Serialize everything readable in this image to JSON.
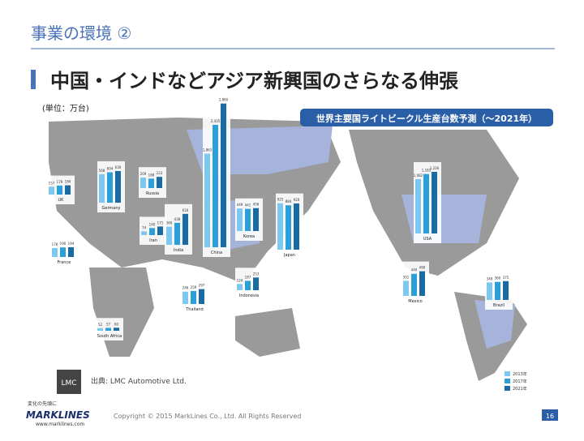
{
  "header": {
    "title": "事業の環境 ②",
    "headline": "中国・インドなどアジア新興国のさらなる伸張"
  },
  "unit": "(単位：万台)",
  "source": "出典: LMC Automotive Ltd.",
  "logo": "LMC",
  "footer": {
    "tagline": "変化の先頭に",
    "brand": "MARKLINES",
    "url": "www.marklines.com",
    "copyright": "Copyright © 2015 MarkLines Co., Ltd. All Rights Reserved",
    "page": "16"
  },
  "chart_data": {
    "type": "map-bar",
    "title": "世界主要国ライトビークル生産台数予測（～2021年）",
    "categories": [
      "UK",
      "Germany",
      "Russia",
      "Iran",
      "India",
      "China",
      "Korea",
      "Japan",
      "Indonesia",
      "Thailand",
      "Mexico",
      "USA",
      "Brazil",
      "France",
      "South Africa"
    ],
    "ylim": [
      0,
      3000
    ],
    "series": [
      {
        "name": "2013年",
        "color": "#7cc8f0",
        "values": [
          157,
          568,
          209,
          74,
          360,
          1863,
          449,
          925,
          124,
          246,
          301,
          1082,
          349,
          178,
          52
        ],
        "value_labels": [
          "157",
          "568",
          "209",
          "74",
          "360",
          "1,863",
          "449",
          "925",
          "124",
          "246",
          "301",
          "1,082",
          "349",
          "178",
          "52"
        ]
      },
      {
        "name": "2017年",
        "color": "#2a9fd8",
        "values": [
          179,
          604,
          188,
          140,
          438,
          2435,
          441,
          884,
          187,
          259,
          440,
          1183,
          360,
          190,
          57
        ],
        "value_labels": [
          "179",
          "604",
          "188",
          "140",
          "438",
          "2,435",
          "441",
          "884",
          "187",
          "259",
          "440",
          "1,183",
          "360",
          "190",
          "57"
        ]
      },
      {
        "name": "2021年",
        "color": "#1a6aa3",
        "values": [
          184,
          630,
          223,
          171,
          616,
          2860,
          456,
          920,
          253,
          297,
          490,
          1226,
          375,
          194,
          60
        ],
        "value_labels": [
          "184",
          "630",
          "223",
          "171",
          "616",
          "2,860",
          "456",
          "920",
          "253",
          "297",
          "490",
          "1,226",
          "375",
          "194",
          "60"
        ]
      }
    ]
  }
}
